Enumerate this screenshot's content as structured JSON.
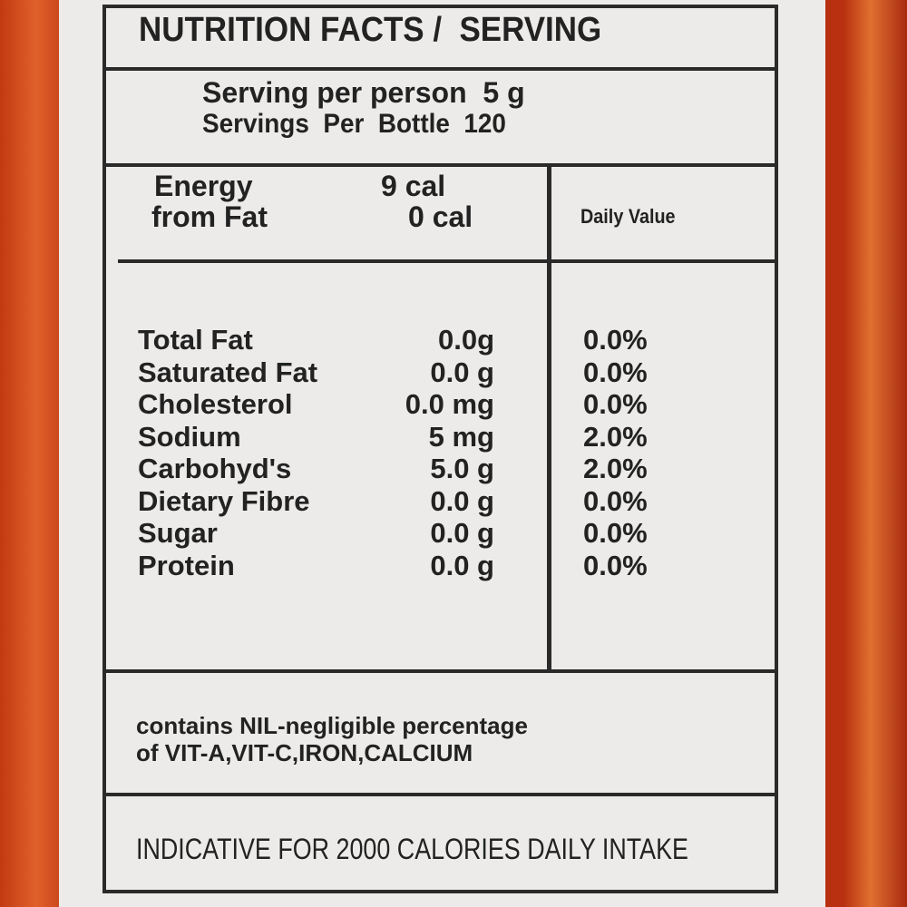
{
  "header": {
    "title": "NUTRITION FACTS /  SERVING"
  },
  "serving": {
    "per_person": "Serving per person  5 g",
    "per_bottle": "Servings  Per  Bottle  120"
  },
  "energy": {
    "rows": [
      [
        "Energy",
        "9 cal"
      ],
      [
        "from Fat",
        "0 cal"
      ]
    ],
    "daily_value_heading": "Daily Value"
  },
  "nutrients": [
    [
      "Total Fat",
      "0.0g",
      "0.0%"
    ],
    [
      "Saturated Fat",
      "0.0 g",
      "0.0%"
    ],
    [
      "Cholesterol",
      "0.0 mg",
      "0.0%"
    ],
    [
      "Sodium",
      "5 mg",
      "2.0%"
    ],
    [
      "Carbohyd's",
      "5.0 g",
      "2.0%"
    ],
    [
      "Dietary Fibre",
      "0.0 g",
      "0.0%"
    ],
    [
      "Sugar",
      "0.0 g",
      "0.0%"
    ],
    [
      "Protein",
      "0.0 g",
      "0.0%"
    ]
  ],
  "note": {
    "lines": [
      "contains NIL-negligible percentage",
      "of VIT-A,VIT-C,IRON,CALCIUM"
    ]
  },
  "footer": {
    "text": "INDICATIVE FOR 2000 CALORIES DAILY INTAKE"
  }
}
